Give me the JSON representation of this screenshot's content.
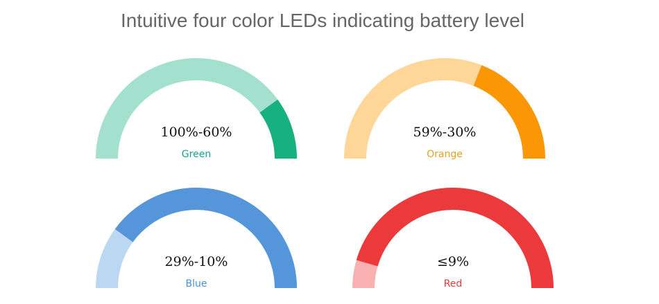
{
  "title": "Intuitive four color LEDs indicating battery level",
  "gauges": [
    {
      "range": "100%-60%",
      "name": "Green",
      "name_color": "#17a589",
      "base_color": "#a3e0ce",
      "active_color": "#17b07f",
      "active_from": 0.0,
      "active_to": 0.2
    },
    {
      "range": "59%-30%",
      "name": "Orange",
      "name_color": "#e6a21d",
      "base_color": "#fdd698",
      "active_color": "#fb9605",
      "active_from": 0.0,
      "active_to": 0.38
    },
    {
      "range": "29%-10%",
      "name": "Blue",
      "name_color": "#4a90d9",
      "base_color": "#bcd7f1",
      "active_color": "#5596da",
      "active_from": 0.0,
      "active_to": 0.8
    },
    {
      "range": "≤9%",
      "name": "Red",
      "name_color": "#e03c3c",
      "base_color": "#f8b0b0",
      "active_color": "#ec393c",
      "active_from": 0.0,
      "active_to": 0.91
    }
  ]
}
